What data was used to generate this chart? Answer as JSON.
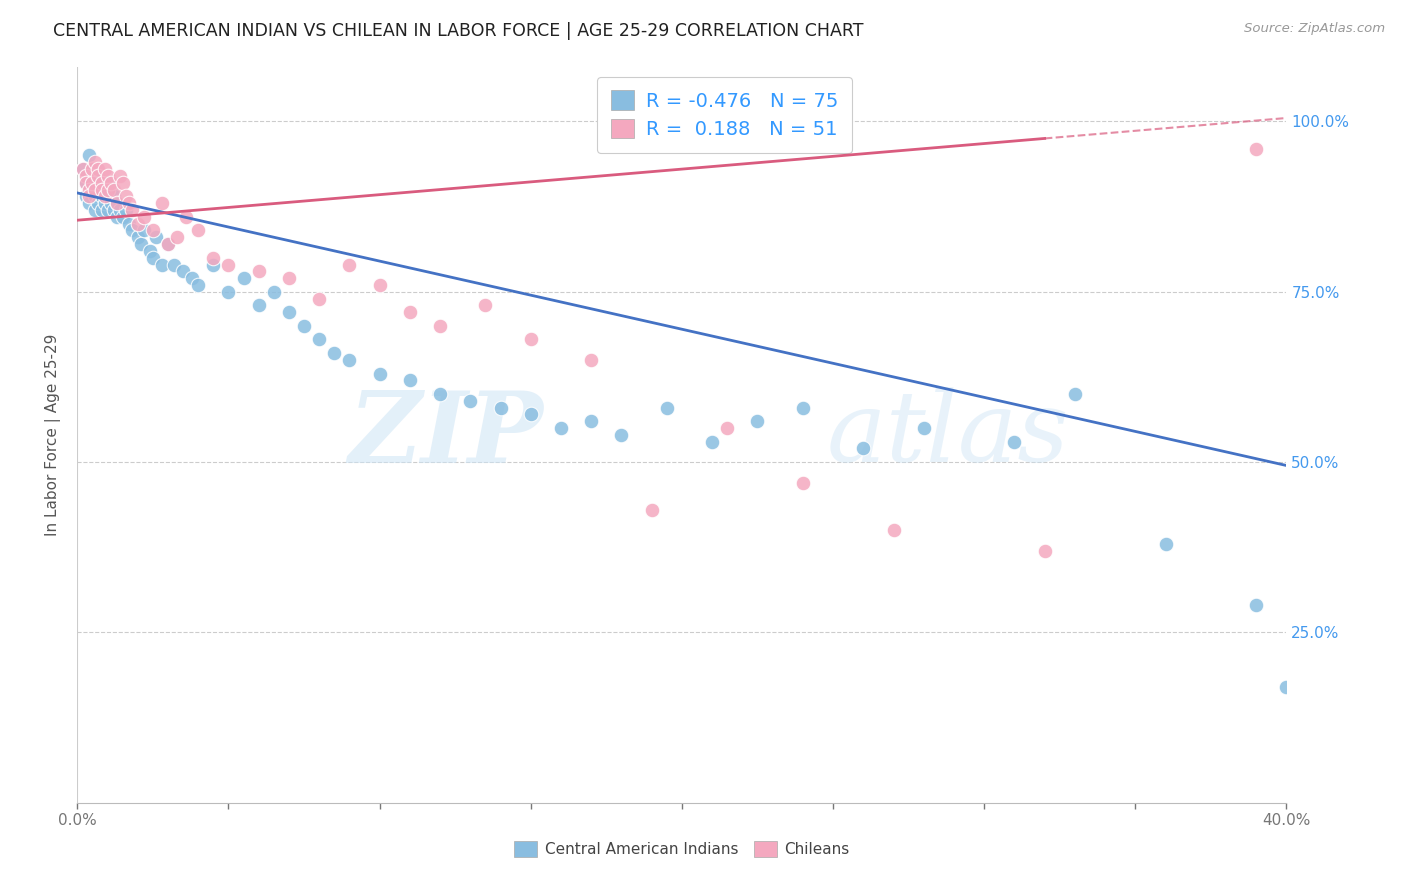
{
  "title": "CENTRAL AMERICAN INDIAN VS CHILEAN IN LABOR FORCE | AGE 25-29 CORRELATION CHART",
  "source": "Source: ZipAtlas.com",
  "ylabel": "In Labor Force | Age 25-29",
  "xlim": [
    0.0,
    0.4
  ],
  "ylim": [
    0.0,
    1.08
  ],
  "xticks": [
    0.0,
    0.05,
    0.1,
    0.15,
    0.2,
    0.25,
    0.3,
    0.35,
    0.4
  ],
  "xticklabels": [
    "0.0%",
    "",
    "",
    "",
    "",
    "",
    "",
    "",
    "40.0%"
  ],
  "ytick_positions": [
    0.0,
    0.25,
    0.5,
    0.75,
    1.0
  ],
  "yticklabels_right": [
    "",
    "25.0%",
    "50.0%",
    "75.0%",
    "100.0%"
  ],
  "blue_color": "#89bde0",
  "pink_color": "#f4a8bf",
  "blue_line_color": "#4472c4",
  "pink_line_color": "#d95b7e",
  "legend_R_blue": "-0.476",
  "legend_N_blue": "75",
  "legend_R_pink": "0.188",
  "legend_N_pink": "51",
  "legend_label_blue": "Central American Indians",
  "legend_label_pink": "Chileans",
  "watermark_zip": "ZIP",
  "watermark_atlas": "atlas",
  "blue_trend_x": [
    0.0,
    0.4
  ],
  "blue_trend_y": [
    0.895,
    0.495
  ],
  "pink_trend_x": [
    0.0,
    0.4
  ],
  "pink_trend_y": [
    0.855,
    1.005
  ],
  "blue_x": [
    0.002,
    0.003,
    0.003,
    0.004,
    0.004,
    0.005,
    0.005,
    0.005,
    0.006,
    0.006,
    0.006,
    0.007,
    0.007,
    0.007,
    0.008,
    0.008,
    0.008,
    0.009,
    0.009,
    0.01,
    0.01,
    0.01,
    0.011,
    0.011,
    0.012,
    0.012,
    0.013,
    0.013,
    0.014,
    0.015,
    0.016,
    0.017,
    0.018,
    0.02,
    0.021,
    0.022,
    0.024,
    0.025,
    0.026,
    0.028,
    0.03,
    0.032,
    0.035,
    0.038,
    0.04,
    0.045,
    0.05,
    0.055,
    0.06,
    0.065,
    0.07,
    0.075,
    0.08,
    0.085,
    0.09,
    0.1,
    0.11,
    0.12,
    0.13,
    0.14,
    0.15,
    0.16,
    0.17,
    0.18,
    0.195,
    0.21,
    0.225,
    0.24,
    0.26,
    0.28,
    0.31,
    0.33,
    0.36,
    0.39,
    0.4
  ],
  "blue_y": [
    0.93,
    0.91,
    0.89,
    0.95,
    0.88,
    0.93,
    0.92,
    0.9,
    0.91,
    0.89,
    0.87,
    0.92,
    0.9,
    0.88,
    0.91,
    0.89,
    0.87,
    0.9,
    0.88,
    0.91,
    0.89,
    0.87,
    0.9,
    0.88,
    0.89,
    0.87,
    0.88,
    0.86,
    0.87,
    0.86,
    0.87,
    0.85,
    0.84,
    0.83,
    0.82,
    0.84,
    0.81,
    0.8,
    0.83,
    0.79,
    0.82,
    0.79,
    0.78,
    0.77,
    0.76,
    0.79,
    0.75,
    0.77,
    0.73,
    0.75,
    0.72,
    0.7,
    0.68,
    0.66,
    0.65,
    0.63,
    0.62,
    0.6,
    0.59,
    0.58,
    0.57,
    0.55,
    0.56,
    0.54,
    0.58,
    0.53,
    0.56,
    0.58,
    0.52,
    0.55,
    0.53,
    0.6,
    0.38,
    0.29,
    0.17
  ],
  "pink_x": [
    0.002,
    0.003,
    0.003,
    0.004,
    0.004,
    0.005,
    0.005,
    0.006,
    0.006,
    0.007,
    0.007,
    0.008,
    0.008,
    0.009,
    0.009,
    0.01,
    0.01,
    0.011,
    0.012,
    0.013,
    0.014,
    0.015,
    0.016,
    0.017,
    0.018,
    0.02,
    0.022,
    0.025,
    0.028,
    0.03,
    0.033,
    0.036,
    0.04,
    0.045,
    0.05,
    0.06,
    0.07,
    0.08,
    0.09,
    0.1,
    0.11,
    0.12,
    0.135,
    0.15,
    0.17,
    0.19,
    0.215,
    0.24,
    0.27,
    0.32,
    0.39
  ],
  "pink_y": [
    0.93,
    0.92,
    0.91,
    0.9,
    0.89,
    0.93,
    0.91,
    0.94,
    0.9,
    0.93,
    0.92,
    0.91,
    0.9,
    0.93,
    0.89,
    0.92,
    0.9,
    0.91,
    0.9,
    0.88,
    0.92,
    0.91,
    0.89,
    0.88,
    0.87,
    0.85,
    0.86,
    0.84,
    0.88,
    0.82,
    0.83,
    0.86,
    0.84,
    0.8,
    0.79,
    0.78,
    0.77,
    0.74,
    0.79,
    0.76,
    0.72,
    0.7,
    0.73,
    0.68,
    0.65,
    0.43,
    0.55,
    0.47,
    0.4,
    0.37,
    0.96
  ]
}
